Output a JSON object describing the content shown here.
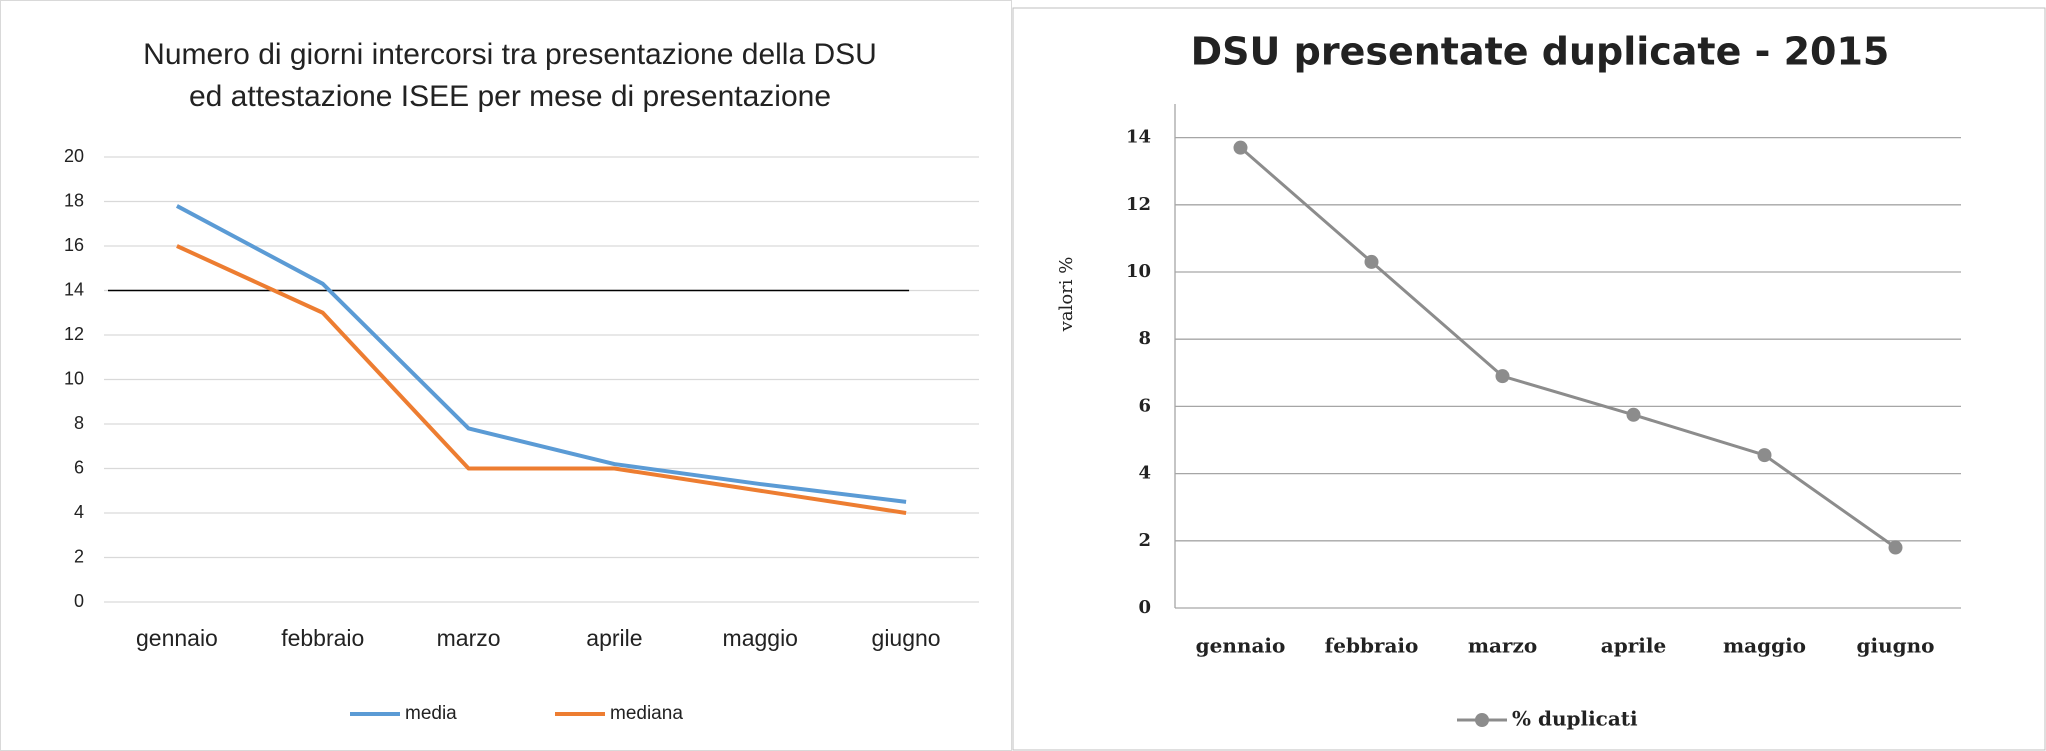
{
  "chart_data": [
    {
      "type": "line",
      "title": [
        "Numero di giorni intercorsi tra presentazione della DSU",
        "ed attestazione ISEE per mese di presentazione"
      ],
      "categories": [
        "gennaio",
        "febbraio",
        "marzo",
        "aprile",
        "maggio",
        "giugno"
      ],
      "series": [
        {
          "name": "media",
          "color": "#5b9bd5",
          "values": [
            17.8,
            14.3,
            7.8,
            6.2,
            5.3,
            4.5
          ]
        },
        {
          "name": "mediana",
          "color": "#ed7d31",
          "values": [
            16,
            13,
            6,
            6,
            5,
            4
          ]
        }
      ],
      "reference_line": 14,
      "ylim": [
        0,
        20
      ],
      "yticks": [
        0,
        2,
        4,
        6,
        8,
        10,
        12,
        14,
        16,
        18,
        20
      ],
      "grid": true,
      "legend": "bottom"
    },
    {
      "type": "line",
      "title": "DSU presentate duplicate - 2015",
      "ylabel": "valori %",
      "categories": [
        "gennaio",
        "febbraio",
        "marzo",
        "aprile",
        "maggio",
        "giugno"
      ],
      "series": [
        {
          "name": "% duplicati",
          "color": "#8c8c8c",
          "values": [
            13.7,
            10.3,
            6.9,
            5.75,
            4.55,
            1.8
          ]
        }
      ],
      "markers": true,
      "ylim": [
        0,
        15
      ],
      "yticks": [
        0,
        2,
        4,
        6,
        8,
        10,
        12,
        14
      ],
      "grid": true,
      "legend": "bottom"
    }
  ]
}
